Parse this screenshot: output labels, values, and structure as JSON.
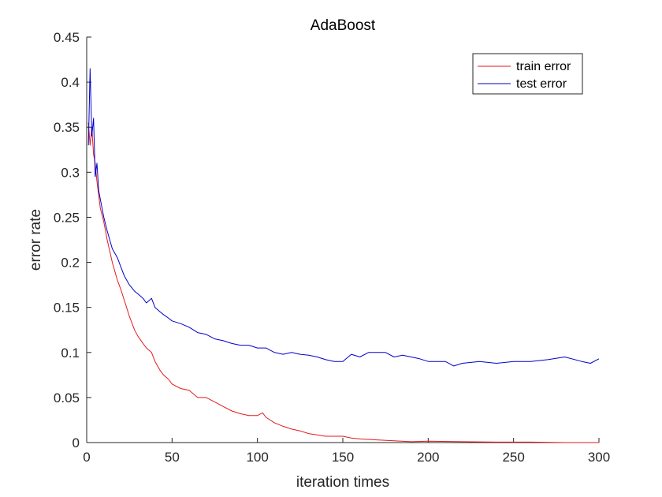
{
  "chart_data": {
    "type": "line",
    "title": "AdaBoost",
    "xlabel": "iteration times",
    "ylabel": "error rate",
    "xlim": [
      0,
      300
    ],
    "ylim": [
      0,
      0.45
    ],
    "xticks": [
      0,
      50,
      100,
      150,
      200,
      250,
      300
    ],
    "yticks": [
      0,
      0.05,
      0.1,
      0.15,
      0.2,
      0.25,
      0.3,
      0.35,
      0.4,
      0.45
    ],
    "grid": false,
    "legend_position": "top-right",
    "series": [
      {
        "name": "train error",
        "color": "#e41a1c",
        "x": [
          1,
          2,
          3,
          4,
          5,
          6,
          8,
          10,
          12,
          15,
          18,
          20,
          22,
          25,
          28,
          30,
          33,
          35,
          38,
          40,
          43,
          45,
          48,
          50,
          55,
          60,
          65,
          70,
          75,
          80,
          85,
          90,
          95,
          100,
          103,
          105,
          110,
          115,
          120,
          125,
          130,
          140,
          150,
          155,
          160,
          170,
          180,
          190,
          200,
          220,
          240,
          260,
          280,
          300
        ],
        "y": [
          0.355,
          0.33,
          0.35,
          0.32,
          0.31,
          0.29,
          0.26,
          0.245,
          0.225,
          0.2,
          0.18,
          0.17,
          0.158,
          0.14,
          0.125,
          0.118,
          0.11,
          0.105,
          0.1,
          0.09,
          0.08,
          0.075,
          0.07,
          0.065,
          0.06,
          0.058,
          0.05,
          0.05,
          0.045,
          0.04,
          0.035,
          0.032,
          0.03,
          0.03,
          0.033,
          0.028,
          0.022,
          0.018,
          0.015,
          0.013,
          0.01,
          0.007,
          0.007,
          0.005,
          0.004,
          0.003,
          0.002,
          0.001,
          0.0015,
          0.001,
          0.0005,
          0.0005,
          0.0,
          0.0
        ]
      },
      {
        "name": "test error",
        "color": "#0000cd",
        "x": [
          1,
          2,
          3,
          4,
          5,
          6,
          7,
          8,
          10,
          12,
          15,
          18,
          20,
          22,
          25,
          28,
          30,
          33,
          35,
          38,
          40,
          43,
          45,
          48,
          50,
          55,
          60,
          65,
          70,
          75,
          80,
          85,
          90,
          95,
          100,
          105,
          110,
          115,
          120,
          125,
          130,
          135,
          140,
          145,
          150,
          155,
          160,
          165,
          170,
          175,
          180,
          185,
          190,
          195,
          200,
          210,
          215,
          220,
          230,
          240,
          250,
          260,
          270,
          280,
          290,
          295,
          300
        ],
        "y": [
          0.33,
          0.415,
          0.34,
          0.36,
          0.295,
          0.31,
          0.28,
          0.27,
          0.25,
          0.235,
          0.215,
          0.205,
          0.195,
          0.185,
          0.175,
          0.168,
          0.165,
          0.16,
          0.155,
          0.16,
          0.15,
          0.145,
          0.142,
          0.138,
          0.135,
          0.132,
          0.128,
          0.122,
          0.12,
          0.115,
          0.113,
          0.11,
          0.108,
          0.108,
          0.105,
          0.105,
          0.1,
          0.098,
          0.1,
          0.098,
          0.097,
          0.095,
          0.092,
          0.09,
          0.09,
          0.098,
          0.095,
          0.1,
          0.1,
          0.1,
          0.095,
          0.097,
          0.095,
          0.093,
          0.09,
          0.09,
          0.085,
          0.088,
          0.09,
          0.088,
          0.09,
          0.09,
          0.092,
          0.095,
          0.09,
          0.088,
          0.093
        ]
      }
    ]
  }
}
